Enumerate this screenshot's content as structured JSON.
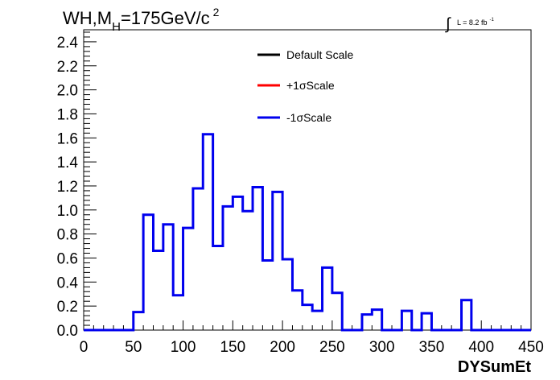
{
  "header": {
    "process": "WH,M",
    "process_sub": "H",
    "mass_text": "=175GeV/c",
    "mass_sup": "2",
    "lumi_integral": "∫",
    "lumi_text": "L = 8.2 fb",
    "lumi_sup": "-1"
  },
  "legend": {
    "entries": [
      {
        "label": "Default Scale",
        "color": "#000000"
      },
      {
        "label": "+1σScale",
        "color": "#ff0000"
      },
      {
        "label": "-1σScale",
        "color": "#0000ee"
      }
    ]
  },
  "chart_data": {
    "type": "line",
    "style": "histogram-step",
    "xlabel": "DYSumEt",
    "ylabel": "",
    "xlim": [
      0,
      450
    ],
    "ylim": [
      0,
      2.5
    ],
    "bin_width": 10,
    "x_ticks": [
      "0",
      "50",
      "100",
      "150",
      "200",
      "250",
      "300",
      "350",
      "400",
      "450"
    ],
    "y_ticks": [
      "0.0",
      "0.2",
      "0.4",
      "0.6",
      "0.8",
      "1.0",
      "1.2",
      "1.4",
      "1.6",
      "1.8",
      "2.0",
      "2.2",
      "2.4"
    ],
    "bin_edges_start": 0,
    "series": [
      {
        "name": "-1σScale",
        "color": "#0000ee",
        "values": [
          0,
          0,
          0,
          0,
          0,
          0.15,
          0.96,
          0.66,
          0.88,
          0.29,
          0.85,
          1.18,
          1.63,
          0.7,
          1.03,
          1.11,
          0.99,
          1.19,
          0.58,
          1.15,
          0.59,
          0.33,
          0.21,
          0.16,
          0.52,
          0.31,
          0,
          0,
          0.13,
          0.17,
          0,
          0,
          0.16,
          0,
          0.14,
          0,
          0,
          0,
          0.25,
          0,
          0,
          0,
          0,
          0,
          0
        ]
      }
    ],
    "grid": false,
    "legend_position": "top-center"
  }
}
